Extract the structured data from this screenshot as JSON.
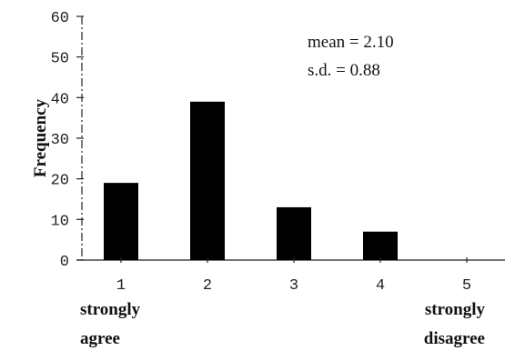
{
  "chart_data": {
    "type": "bar",
    "categories": [
      "1",
      "2",
      "3",
      "4",
      "5"
    ],
    "category_labels": [
      [
        "strongly",
        "agree"
      ],
      [],
      [],
      [],
      [
        "strongly",
        "disagree"
      ]
    ],
    "values": [
      19,
      39,
      13,
      7,
      0
    ],
    "title": "",
    "xlabel": "",
    "ylabel": "Frequency",
    "ylim": [
      0,
      60
    ],
    "yticks": [
      0,
      10,
      20,
      30,
      40,
      50,
      60
    ],
    "annotations": [
      "mean = 2.10",
      "s.d. = 0.88"
    ],
    "bar_color": "#000000",
    "grid": false,
    "legend": "none"
  }
}
